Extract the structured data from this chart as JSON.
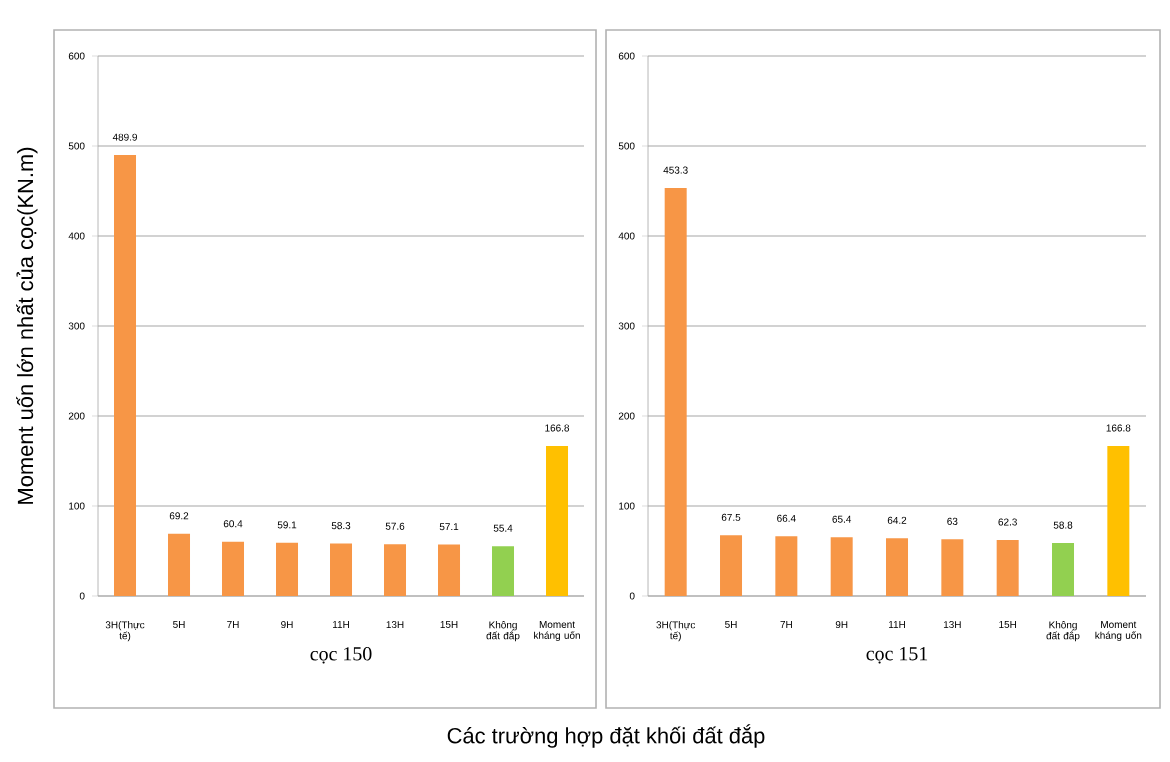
{
  "chart_data": [
    {
      "type": "bar",
      "ylabel": "Moment uốn lớn nhất của cọc(KN.m)",
      "xlabel": "cọc 150",
      "categories": [
        "3H(Thực tế)",
        "5H",
        "7H",
        "9H",
        "11H",
        "13H",
        "15H",
        "Không đất đắp",
        "Moment kháng uốn"
      ],
      "values": [
        489.9,
        69.2,
        60.4,
        59.1,
        58.3,
        57.6,
        57.1,
        55.4,
        166.8
      ],
      "colors": [
        "#f79646",
        "#f79646",
        "#f79646",
        "#f79646",
        "#f79646",
        "#f79646",
        "#f79646",
        "#92d050",
        "#ffc000"
      ],
      "ylim": [
        0,
        600
      ],
      "yticks": [
        0,
        100,
        200,
        300,
        400,
        500,
        600
      ],
      "grid": "y",
      "data_labels": true,
      "annotations": [
        "Các trường hợp đặt khối đất đắp"
      ]
    },
    {
      "type": "bar",
      "xlabel": "cọc 151",
      "categories": [
        "3H(Thực tế)",
        "5H",
        "7H",
        "9H",
        "11H",
        "13H",
        "15H",
        "Không đất đắp",
        "Moment kháng uốn"
      ],
      "values": [
        453.3,
        67.5,
        66.4,
        65.4,
        64.2,
        63,
        62.3,
        58.8,
        166.8
      ],
      "colors": [
        "#f79646",
        "#f79646",
        "#f79646",
        "#f79646",
        "#f79646",
        "#f79646",
        "#f79646",
        "#92d050",
        "#ffc000"
      ],
      "ylim": [
        0,
        600
      ],
      "yticks": [
        0,
        100,
        200,
        300,
        400,
        500,
        600
      ],
      "grid": "y",
      "data_labels": true
    }
  ]
}
